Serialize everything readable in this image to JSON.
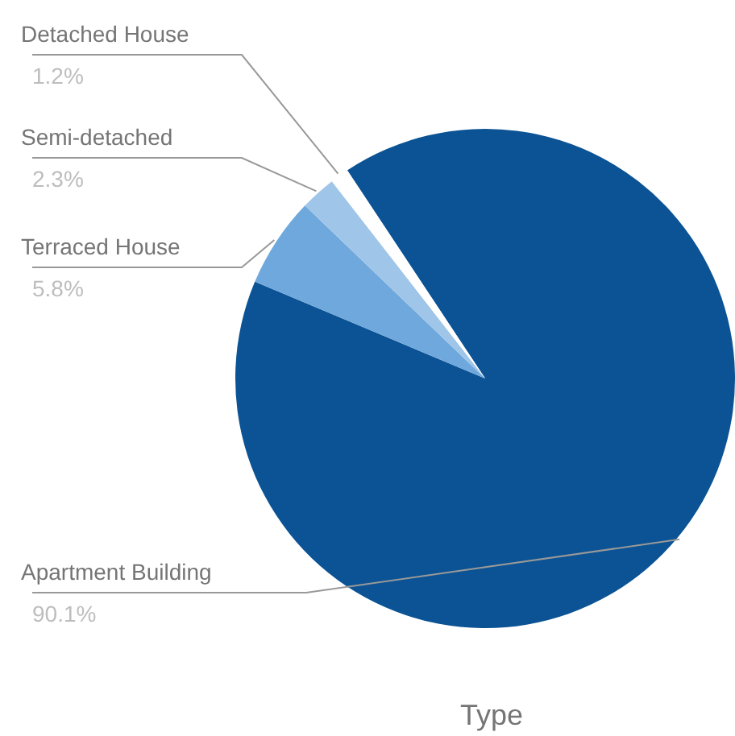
{
  "chart_data": {
    "type": "pie",
    "xlabel": "Type",
    "categories": [
      "Apartment Building",
      "Terraced House",
      "Semi-detached",
      "Detached House"
    ],
    "values": [
      90.1,
      5.8,
      2.3,
      1.2
    ],
    "value_labels": [
      "90.1%",
      "5.8%",
      "2.3%",
      "1.2%"
    ],
    "colors": [
      "#0b5394",
      "#6fa8dc",
      "#9fc5e8",
      "#ffffff"
    ],
    "legend": false
  }
}
